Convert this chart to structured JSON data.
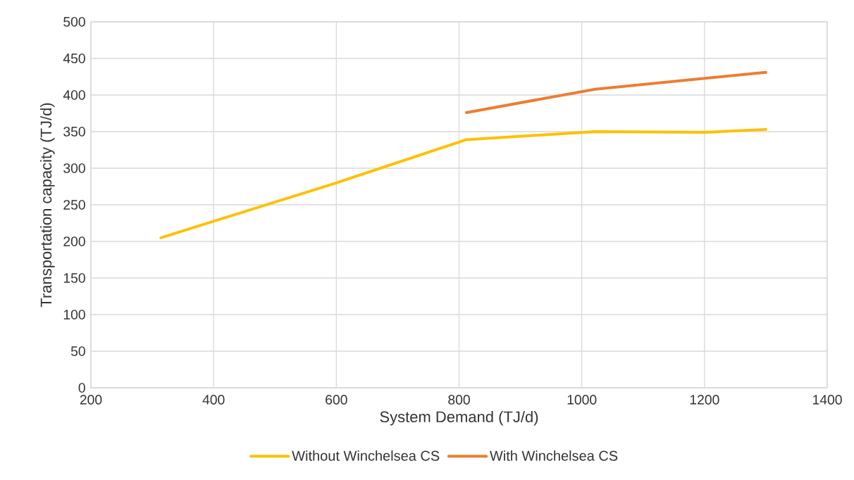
{
  "chart_data": {
    "type": "line",
    "xlabel": "System Demand (TJ/d)",
    "ylabel": "Transportation capacity (TJ/d)",
    "xlim": [
      200,
      1400
    ],
    "xticks": [
      200,
      400,
      600,
      800,
      1000,
      1200,
      1400
    ],
    "ylim": [
      0,
      500
    ],
    "yticks": [
      0,
      50,
      100,
      150,
      200,
      250,
      300,
      350,
      400,
      450,
      500
    ],
    "grid": true,
    "legend": "bottom",
    "marker": "none",
    "line_style": "solid",
    "series": [
      {
        "name": "Without Winchelsea CS",
        "color": "#ffc000",
        "x": [
          314,
          600,
          812,
          1022,
          1200,
          1300
        ],
        "values": [
          205,
          280,
          339,
          350,
          349,
          353
        ]
      },
      {
        "name": "With Winchelsea CS",
        "color": "#ed7d31",
        "x": [
          812,
          1022,
          1300
        ],
        "values": [
          376,
          408,
          431
        ]
      }
    ]
  }
}
